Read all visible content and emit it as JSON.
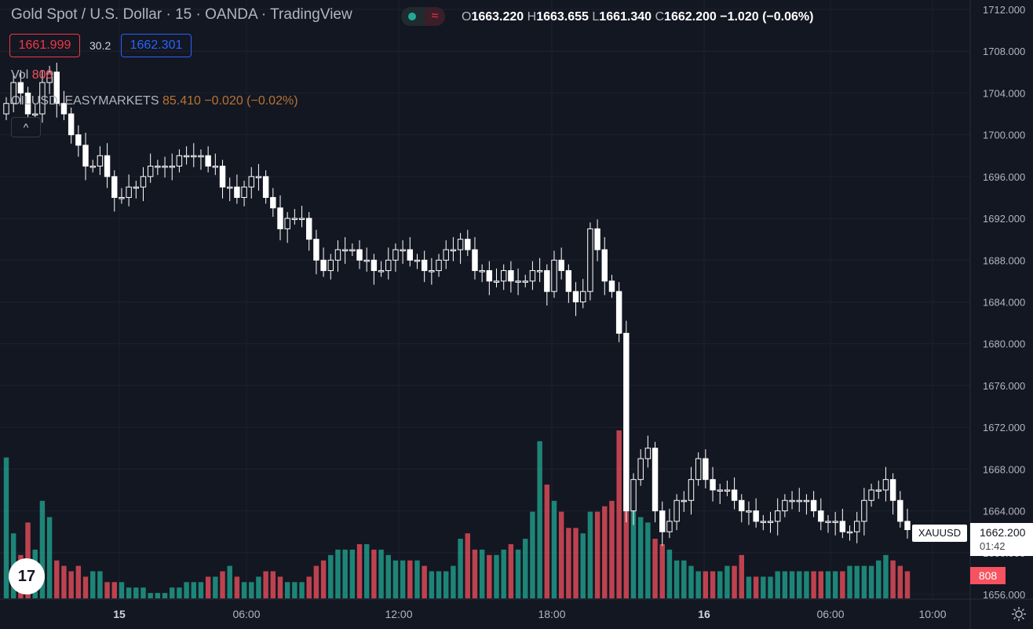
{
  "header": {
    "title": "Gold Spot / U.S. Dollar · 15 · OANDA · TradingView",
    "ohlc": {
      "o_label": "O",
      "o": "1663.220",
      "h_label": "H",
      "h": "1663.655",
      "l_label": "L",
      "l": "1661.340",
      "c_label": "C",
      "c": "1662.200",
      "change": "−1.020 (−0.06%)"
    },
    "status_icon": "≈"
  },
  "trade": {
    "sell_price": "1661.999",
    "spread": "30.2",
    "buy_price": "1662.301"
  },
  "legend": {
    "vol_label": "Vol",
    "vol_value": "808",
    "oil_symbol": "OILUSD, EASYMARKETS",
    "oil_values": "85.410 −0.020 (−0.02%)",
    "collapse": "^"
  },
  "price_scale": {
    "labels": [
      "1712.000",
      "1708.000",
      "1704.000",
      "1700.000",
      "1696.000",
      "1692.000",
      "1688.000",
      "1684.000",
      "1680.000",
      "1676.000",
      "1672.000",
      "1668.000",
      "1664.000",
      "1660.000",
      "1656.000"
    ],
    "current_symbol": "XAUUSD",
    "current_price": "1662.200",
    "countdown": "01:42",
    "volume_badge": "808"
  },
  "time_scale": {
    "labels": [
      {
        "text": "15",
        "bold": true
      },
      {
        "text": "06:00",
        "bold": false
      },
      {
        "text": "12:00",
        "bold": false
      },
      {
        "text": "18:00",
        "bold": false
      },
      {
        "text": "16",
        "bold": true
      },
      {
        "text": "06:00",
        "bold": false
      },
      {
        "text": "10:00",
        "bold": false
      }
    ]
  },
  "colors": {
    "background": "#131722",
    "grid": "#1e222d",
    "candle_up": "#131722",
    "candle_wick": "#ffffff",
    "volume_up": "#22ab94",
    "volume_down": "#f7525f",
    "sell": "#f23645",
    "buy": "#2962ff"
  },
  "icons": {
    "logo": "tradingview-logo",
    "settings": "gear-icon"
  },
  "chart_data": {
    "type": "candlestick",
    "symbol": "XAUUSD",
    "ylim": [
      1656,
      1712
    ],
    "close": [
      1703,
      1705,
      1704,
      1702,
      1702,
      1705,
      1706,
      1703,
      1702,
      1700,
      1699,
      1697,
      1697,
      1698,
      1696,
      1694,
      1694,
      1695,
      1695,
      1696,
      1697,
      1697,
      1697,
      1697,
      1698,
      1698,
      1698,
      1698,
      1697,
      1697,
      1695,
      1695,
      1694,
      1695,
      1696,
      1696,
      1694,
      1693,
      1691,
      1692,
      1692,
      1692,
      1690,
      1688,
      1687,
      1688,
      1689,
      1689,
      1689,
      1688,
      1688,
      1687,
      1687,
      1688,
      1689,
      1689,
      1688,
      1688,
      1687,
      1687,
      1688,
      1689,
      1689,
      1690,
      1689,
      1687,
      1687,
      1686,
      1686,
      1687,
      1686,
      1686,
      1686,
      1687,
      1687,
      1685,
      1688,
      1687,
      1685,
      1684,
      1685,
      1691,
      1689,
      1686,
      1685,
      1681,
      1664,
      1667,
      1669,
      1670,
      1664,
      1662,
      1663,
      1665,
      1665,
      1667,
      1669,
      1667,
      1666,
      1666,
      1666,
      1665,
      1664,
      1664,
      1663,
      1663,
      1663,
      1664,
      1665,
      1665,
      1665,
      1665,
      1664,
      1663,
      1663,
      1663,
      1662,
      1662,
      1663,
      1665,
      1666,
      1666,
      1667,
      1665,
      1663,
      1662.2
    ],
    "volume": [
      26,
      12,
      8,
      14,
      9,
      18,
      15,
      7,
      6,
      5,
      6,
      4,
      5,
      5,
      3,
      3,
      3,
      2,
      2,
      2,
      1,
      1,
      1,
      2,
      2,
      3,
      3,
      3,
      4,
      4,
      5,
      6,
      4,
      3,
      3,
      4,
      5,
      5,
      4,
      3,
      3,
      3,
      4,
      6,
      7,
      8,
      9,
      9,
      9,
      10,
      10,
      9,
      9,
      8,
      7,
      7,
      7,
      7,
      6,
      5,
      5,
      5,
      6,
      11,
      12,
      9,
      9,
      8,
      8,
      9,
      10,
      9,
      11,
      16,
      29,
      21,
      18,
      16,
      13,
      13,
      12,
      16,
      16,
      17,
      18,
      31,
      18,
      17,
      15,
      14,
      11,
      10,
      9,
      7,
      7,
      6,
      5,
      5,
      5,
      5,
      6,
      6,
      8,
      4,
      4,
      4,
      4,
      5,
      5,
      5,
      5,
      5,
      5,
      5,
      5,
      5,
      5,
      6,
      6,
      6,
      6,
      7,
      8,
      7,
      6,
      5
    ]
  }
}
